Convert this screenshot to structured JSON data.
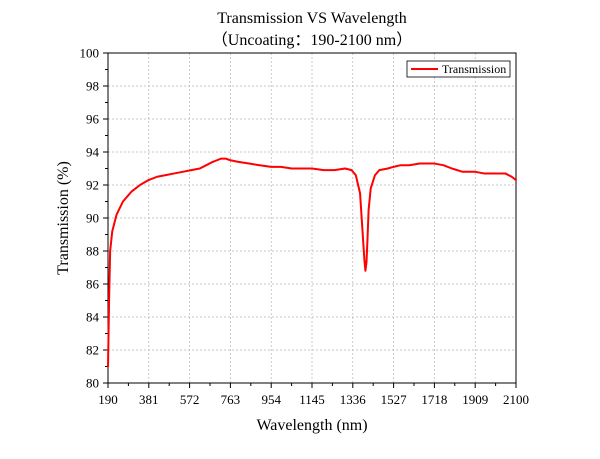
{
  "chart_data": {
    "type": "line",
    "title": "Transmission VS Wavelength",
    "subtitle": "（Uncoating：190-2100 nm）",
    "xlabel": "Wavelength (nm)",
    "ylabel": "Transmission (%)",
    "xlim": [
      190,
      2100
    ],
    "ylim": [
      80,
      100
    ],
    "x_ticks": [
      "190",
      "381",
      "572",
      "763",
      "954",
      "1145",
      "1336",
      "1527",
      "1718",
      "1909",
      "2100"
    ],
    "y_ticks": [
      "80",
      "82",
      "84",
      "86",
      "88",
      "90",
      "92",
      "94",
      "96",
      "98",
      "100"
    ],
    "grid": true,
    "legend_position": "top-right",
    "series": [
      {
        "name": "Transmission",
        "color": "#ff0000",
        "x": [
          190,
          195,
          200,
          210,
          230,
          260,
          300,
          340,
          380,
          420,
          460,
          500,
          540,
          580,
          620,
          650,
          680,
          700,
          720,
          740,
          763,
          800,
          850,
          900,
          954,
          1000,
          1050,
          1100,
          1145,
          1200,
          1250,
          1300,
          1330,
          1350,
          1370,
          1380,
          1390,
          1395,
          1400,
          1405,
          1410,
          1420,
          1440,
          1460,
          1500,
          1527,
          1560,
          1600,
          1650,
          1718,
          1760,
          1800,
          1850,
          1880,
          1909,
          1950,
          2000,
          2050,
          2080,
          2100
        ],
        "y": [
          81.0,
          85.0,
          88.0,
          89.2,
          90.2,
          91.0,
          91.6,
          92.0,
          92.3,
          92.5,
          92.6,
          92.7,
          92.8,
          92.9,
          93.0,
          93.2,
          93.4,
          93.5,
          93.6,
          93.6,
          93.5,
          93.4,
          93.3,
          93.2,
          93.1,
          93.1,
          93.0,
          93.0,
          93.0,
          92.9,
          92.9,
          93.0,
          92.9,
          92.6,
          91.5,
          89.5,
          87.5,
          86.8,
          87.3,
          88.8,
          90.5,
          91.8,
          92.6,
          92.9,
          93.0,
          93.1,
          93.2,
          93.2,
          93.3,
          93.3,
          93.2,
          93.0,
          92.8,
          92.8,
          92.8,
          92.7,
          92.7,
          92.7,
          92.5,
          92.3
        ]
      }
    ]
  }
}
